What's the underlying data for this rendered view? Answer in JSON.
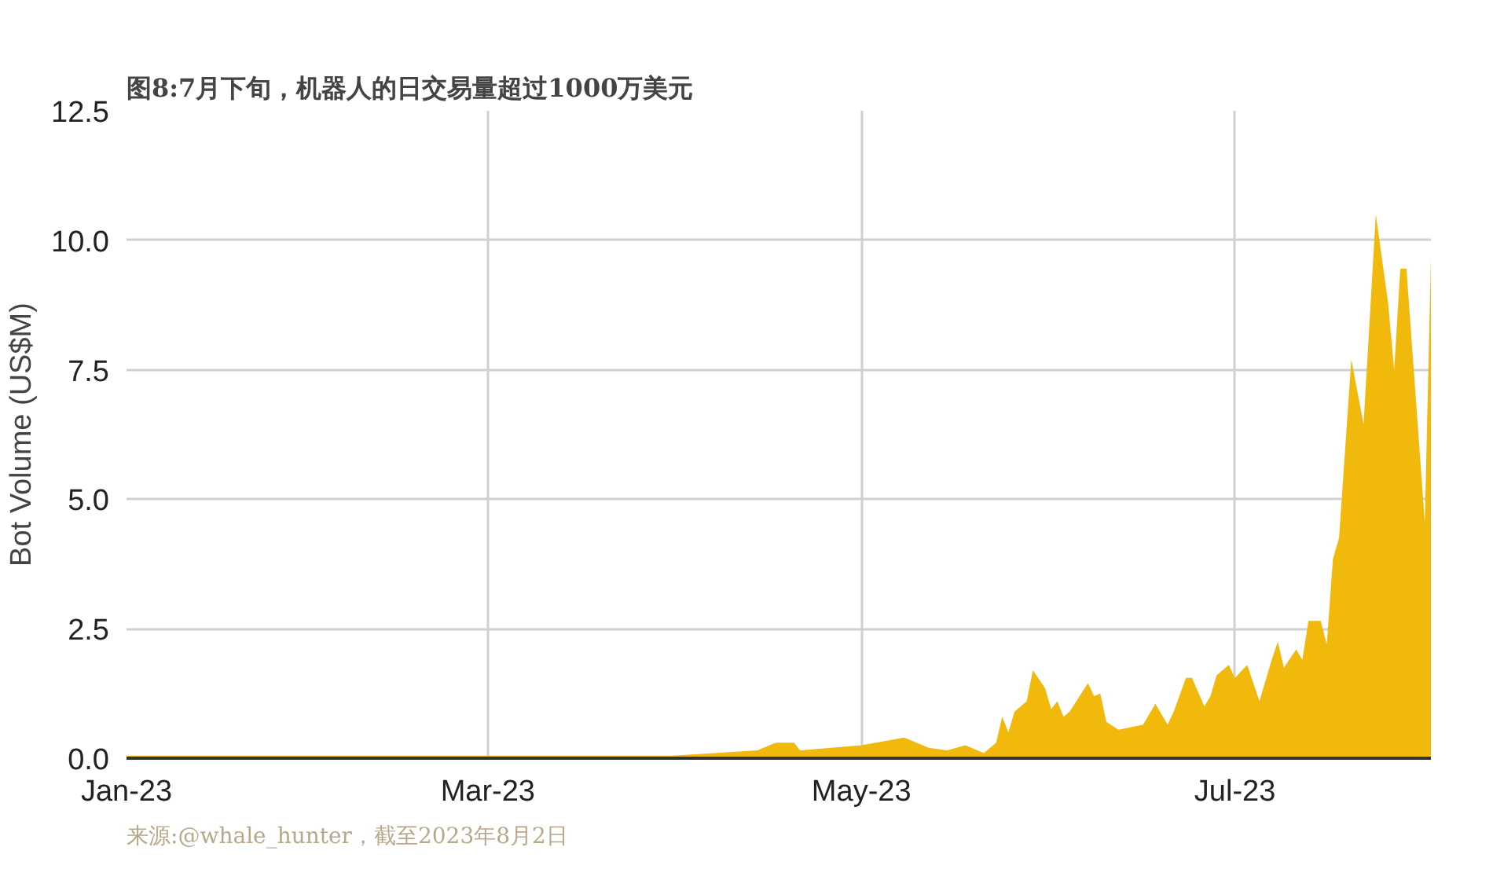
{
  "chart_data": {
    "type": "area",
    "title": "图8:7月下旬，机器人的日交易量超过1000万美元",
    "ylabel": "Bot Volume (US$M)",
    "x": [
      "2023-01-01",
      "2023-03-31",
      "2023-04-07",
      "2023-04-14",
      "2023-04-17",
      "2023-04-20",
      "2023-04-21",
      "2023-05-01",
      "2023-05-08",
      "2023-05-12",
      "2023-05-15",
      "2023-05-18",
      "2023-05-21",
      "2023-05-23",
      "2023-05-24",
      "2023-05-25",
      "2023-05-26",
      "2023-05-28",
      "2023-05-29",
      "2023-05-31",
      "2023-06-01",
      "2023-06-02",
      "2023-06-03",
      "2023-06-04",
      "2023-06-07",
      "2023-06-08",
      "2023-06-09",
      "2023-06-10",
      "2023-06-12",
      "2023-06-16",
      "2023-06-18",
      "2023-06-20",
      "2023-06-21",
      "2023-06-23",
      "2023-06-24",
      "2023-06-26",
      "2023-06-27",
      "2023-06-28",
      "2023-06-30",
      "2023-07-01",
      "2023-07-03",
      "2023-07-05",
      "2023-07-07",
      "2023-07-08",
      "2023-07-09",
      "2023-07-11",
      "2023-07-12",
      "2023-07-13",
      "2023-07-15",
      "2023-07-16",
      "2023-07-17",
      "2023-07-18",
      "2023-07-20",
      "2023-07-22",
      "2023-07-24",
      "2023-07-26",
      "2023-07-27",
      "2023-07-28",
      "2023-07-29",
      "2023-08-01",
      "2023-08-02"
    ],
    "series": [
      {
        "color": "#f0b90b",
        "values": [
          0.05,
          0.05,
          0.1,
          0.15,
          0.3,
          0.3,
          0.15,
          0.25,
          0.4,
          0.2,
          0.15,
          0.25,
          0.1,
          0.3,
          0.8,
          0.5,
          0.9,
          1.1,
          1.7,
          1.35,
          0.95,
          1.1,
          0.8,
          0.9,
          1.45,
          1.2,
          1.25,
          0.7,
          0.55,
          0.65,
          1.05,
          0.65,
          0.9,
          1.55,
          1.55,
          1.0,
          1.2,
          1.6,
          1.8,
          1.55,
          1.8,
          1.1,
          1.9,
          2.25,
          1.75,
          2.1,
          1.9,
          2.65,
          2.65,
          2.2,
          3.85,
          4.25,
          7.7,
          6.45,
          10.5,
          8.8,
          7.5,
          9.45,
          9.45,
          4.55,
          9.65
        ]
      }
    ],
    "xlim": [
      "2023-01-01",
      "2023-08-02"
    ],
    "xticks": [
      {
        "value": "2023-01-01",
        "label": "Jan-23"
      },
      {
        "value": "2023-03-01",
        "label": "Mar-23"
      },
      {
        "value": "2023-05-01",
        "label": "May-23"
      },
      {
        "value": "2023-07-01",
        "label": "Jul-23"
      }
    ],
    "ylim": [
      0,
      12.5
    ],
    "yticks": [
      {
        "value": 0,
        "label": "0.0"
      },
      {
        "value": 2.5,
        "label": "2.5"
      },
      {
        "value": 5,
        "label": "5.0"
      },
      {
        "value": 7.5,
        "label": "7.5"
      },
      {
        "value": 10,
        "label": "10.0"
      },
      {
        "value": 12.5,
        "label": "12.5"
      }
    ],
    "grid": true,
    "annotations": [
      "来源:@whale_hunter，截至2023年8月2日"
    ]
  }
}
